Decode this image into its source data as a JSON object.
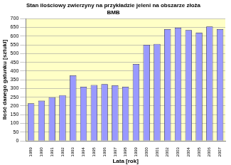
{
  "chart_data": {
    "type": "bar",
    "title": "Stan ilościowy zwierzyny na przykładzie jeleni na obszarze złoża BMB",
    "x_label": "Lata [rok]",
    "y_label": "Ilość danego gatunku [sztuki]",
    "categories": [
      "1989",
      "1990",
      "1991",
      "1992",
      "1993",
      "1994",
      "1995",
      "1996",
      "1997",
      "1998",
      "1999",
      "2000",
      "2001",
      "2002",
      "2003",
      "2004",
      "2005",
      "2006",
      "2007"
    ],
    "values": [
      215,
      230,
      250,
      262,
      375,
      310,
      320,
      325,
      318,
      310,
      440,
      550,
      555,
      640,
      648,
      635,
      620,
      655,
      640
    ],
    "color": "#9999ff",
    "ylim": [
      0,
      700
    ],
    "yticks": [
      0,
      50,
      100,
      150,
      200,
      250,
      300,
      350,
      400,
      450,
      500,
      550,
      600,
      650,
      700
    ],
    "grid": true
  }
}
